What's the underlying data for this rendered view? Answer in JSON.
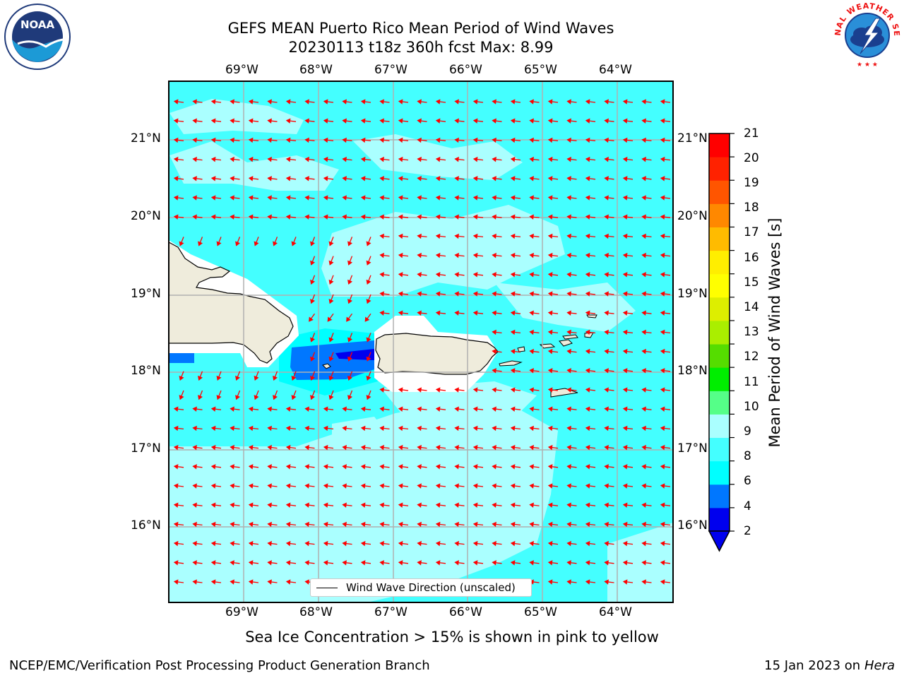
{
  "header": {
    "title_line1": "GEFS MEAN Puerto Rico Mean Period of Wind Waves",
    "title_line2": "20230113 t18z 360h fcst   Max: 8.99"
  },
  "logos": {
    "left": "NOAA",
    "right": "NATIONAL WEATHER SERVICE"
  },
  "map": {
    "lon_labels": [
      "69°W",
      "68°W",
      "67°W",
      "66°W",
      "65°W",
      "64°W"
    ],
    "lat_labels": [
      "21°N",
      "20°N",
      "19°N",
      "18°N",
      "17°N",
      "16°N"
    ],
    "lon_range": [
      -70.0,
      -63.3
    ],
    "lat_range": [
      15.0,
      21.75
    ],
    "land_color": "#efecdc",
    "arrow_color": "#ff0000",
    "grid_color": "#b0b0b0",
    "regions": [
      "Hispaniola",
      "Puerto Rico",
      "Virgin Islands",
      "St. Croix"
    ]
  },
  "colorbar": {
    "label": "Mean Period of Wind Waves [s]",
    "ticks": [
      "21",
      "20",
      "19",
      "18",
      "17",
      "16",
      "15",
      "14",
      "13",
      "12",
      "11",
      "10",
      "9",
      "8",
      "6",
      "4",
      "2"
    ],
    "colors": [
      "#0000ee",
      "#0077ff",
      "#00ffff",
      "#44ffff",
      "#aaffff",
      "#55ff88",
      "#00ee00",
      "#55dd00",
      "#aaee00",
      "#ddee00",
      "#ffff00",
      "#ffee00",
      "#ffbb00",
      "#ff8800",
      "#ff5500",
      "#ff2200",
      "#ff0000"
    ]
  },
  "legend": {
    "label": "Wind Wave Direction (unscaled)"
  },
  "notes": {
    "ice": "Sea Ice Concentration > 15% is shown in pink to yellow"
  },
  "footer": {
    "left": "NCEP/EMC/Verification Post Processing Product Generation Branch",
    "right_date": "15 Jan 2023 on ",
    "right_machine": "Hera"
  }
}
